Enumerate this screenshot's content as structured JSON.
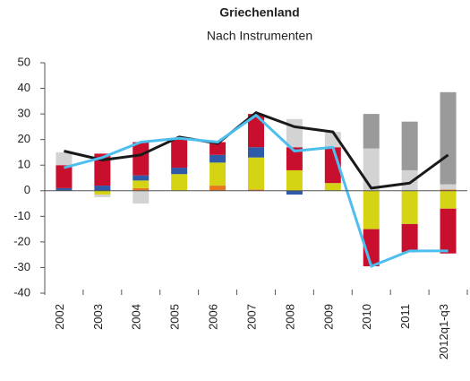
{
  "chart_data": {
    "type": "bar",
    "stacked": true,
    "title": "Griechenland",
    "subtitle": "Nach Instrumenten",
    "categories": [
      "2002",
      "2003",
      "2004",
      "2005",
      "2006",
      "2007",
      "2008",
      "2009",
      "2010",
      "2011",
      "2012q1-q3"
    ],
    "series": [
      {
        "color": "#e87722",
        "values": [
          0,
          0,
          1,
          0,
          2,
          0.5,
          0,
          0,
          0,
          0,
          0.5
        ]
      },
      {
        "color": "#d4d415",
        "values": [
          0,
          -1.5,
          3,
          6.5,
          9,
          12.5,
          8,
          3,
          -15,
          -13,
          -7
        ]
      },
      {
        "color": "#2e5aa8",
        "values": [
          1,
          2,
          2,
          2.5,
          3,
          4,
          -1.5,
          0,
          0,
          0,
          0
        ]
      },
      {
        "color": "#c8102e",
        "values": [
          9,
          12.5,
          13,
          11.5,
          5,
          13,
          9,
          14,
          -14.5,
          -11,
          -17.5
        ]
      },
      {
        "color": "#d3d3d3",
        "values": [
          5,
          -1,
          -5,
          0,
          0,
          0,
          11,
          6,
          16.5,
          8,
          2
        ]
      },
      {
        "color": "#9a9a9a",
        "values": [
          0,
          0,
          0,
          0,
          0,
          0,
          0,
          0,
          13.5,
          19,
          36
        ]
      },
      {
        "type": "line",
        "color": "#1a1a1a",
        "values": [
          15.5,
          12,
          14,
          21,
          18.5,
          30.5,
          25,
          23,
          1,
          3,
          14
        ]
      },
      {
        "type": "line",
        "color": "#4dbfef",
        "values": [
          9,
          13,
          19,
          20.5,
          19,
          29.5,
          15.5,
          17,
          -29.5,
          -23.5,
          -23.5
        ]
      }
    ],
    "ylim": [
      -40,
      50
    ],
    "yticks": [
      -40,
      -30,
      -20,
      -10,
      0,
      10,
      20,
      30,
      40,
      50
    ],
    "grid": false
  }
}
